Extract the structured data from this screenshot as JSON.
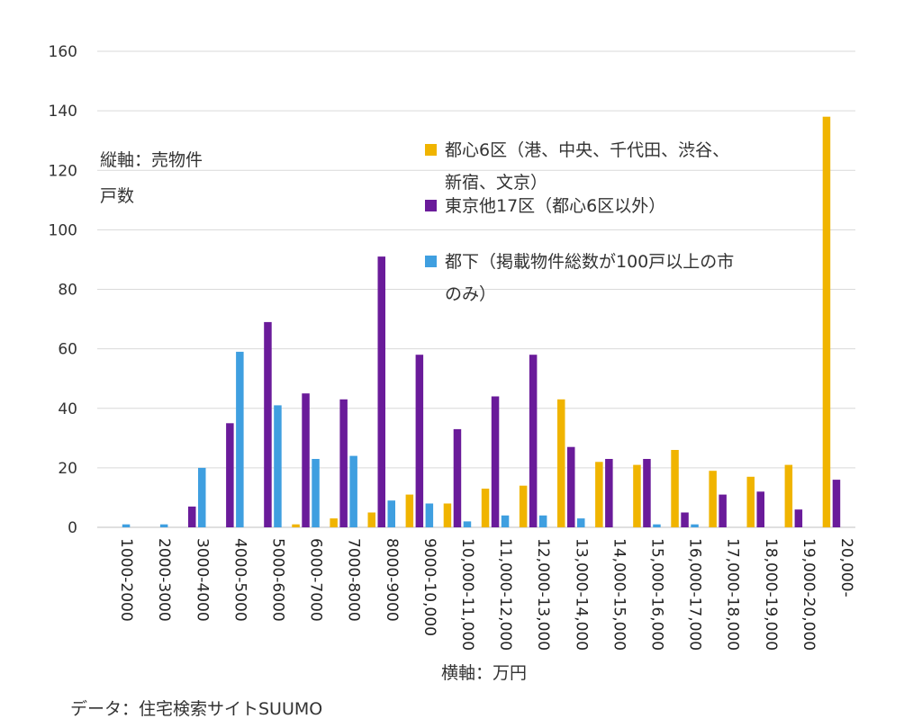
{
  "chart_data": {
    "type": "bar",
    "ylim": [
      0,
      160
    ],
    "yticks": [
      0,
      20,
      40,
      60,
      80,
      100,
      120,
      140,
      160
    ],
    "ylabel": "縦軸：売物件戸数",
    "xlabel": "横軸：万円",
    "source": "データ：住宅検索サイトSUUMO",
    "grid": true,
    "legend_position": "upper-right inside plot",
    "categories": [
      "1000-2000",
      "2000-3000",
      "3000-4000",
      "4000-5000",
      "5000-6000",
      "6000-7000",
      "7000-8000",
      "8000-9000",
      "9000-10,000",
      "10,000-11,000",
      "11,000-12,000",
      "12,000-13,000",
      "13,000-14,000",
      "14,000-15,000",
      "15,000-16,000",
      "16,000-17,000",
      "17,000-18,000",
      "18,000-19,000",
      "19,000-20,000",
      "20,000-"
    ],
    "series": [
      {
        "name": "都心6区（港、中央、千代田、渋谷、新宿、文京）",
        "color": "#f0b400",
        "values": [
          0,
          0,
          0,
          0,
          0,
          1,
          3,
          5,
          11,
          8,
          13,
          14,
          43,
          22,
          21,
          26,
          19,
          17,
          21,
          138
        ]
      },
      {
        "name": "東京他17区（都心6区以外）",
        "color": "#6a1b9a",
        "values": [
          0,
          0,
          7,
          35,
          69,
          45,
          43,
          91,
          58,
          33,
          44,
          58,
          27,
          23,
          23,
          5,
          11,
          12,
          6,
          16
        ]
      },
      {
        "name": "都下（掲載物件総数が100戸以上の市のみ）",
        "color": "#3f9fe0",
        "values": [
          1,
          1,
          20,
          59,
          41,
          23,
          24,
          9,
          8,
          2,
          4,
          4,
          3,
          0,
          1,
          1,
          0,
          0,
          0,
          0
        ]
      }
    ]
  },
  "annotations": {
    "ylabel_line1": "縦軸：売物件",
    "ylabel_line2": "戸数",
    "xlabel": "横軸：万円",
    "source": "データ：住宅検索サイトSUUMO"
  },
  "legend": {
    "item1_line1": "都心6区（港、中央、千代田、渋谷、",
    "item1_line2": "新宿、文京）",
    "item2": "東京他17区（都心6区以外）",
    "item3_line1": "都下（掲載物件総数が100戸以上の市",
    "item3_line2": "のみ）"
  }
}
